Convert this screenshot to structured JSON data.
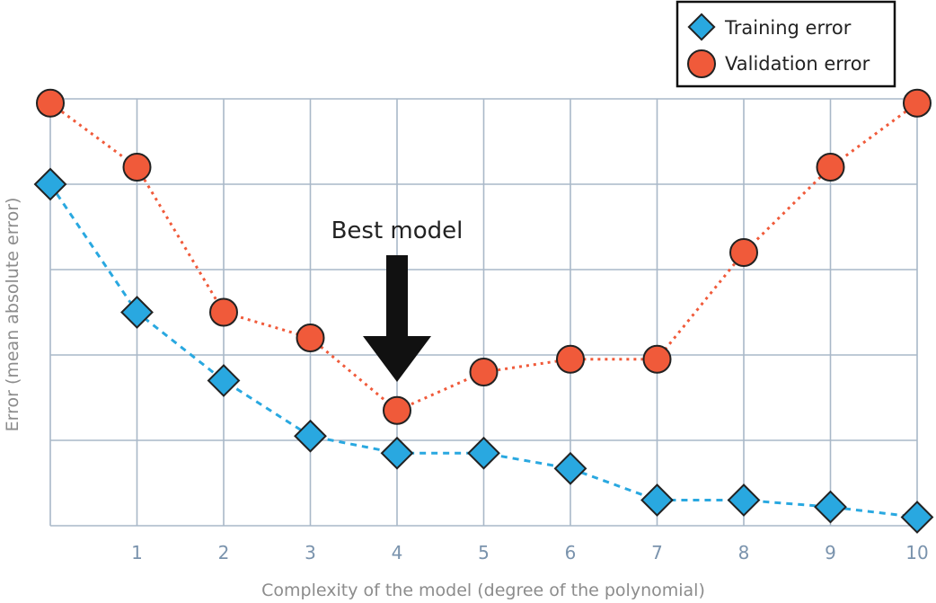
{
  "chart_data": {
    "type": "line",
    "title": "",
    "xlabel": "Complexity of the model (degree of the polynomial)",
    "ylabel": "Error (mean absolute error)",
    "x": [
      0,
      1,
      2,
      3,
      4,
      5,
      6,
      7,
      8,
      9,
      10
    ],
    "x_tick_labels": [
      "1",
      "2",
      "3",
      "4",
      "5",
      "6",
      "7",
      "8",
      "9",
      "10"
    ],
    "xlim": [
      0,
      10
    ],
    "ylim": [
      0,
      5
    ],
    "y_ticks_shown": false,
    "grid": true,
    "legend_position": "top-right",
    "series": [
      {
        "name": "Training error",
        "marker": "diamond",
        "line_style": "dashed",
        "color": "#29a8e0",
        "values": [
          4.0,
          2.5,
          1.7,
          1.05,
          0.85,
          0.85,
          0.67,
          0.3,
          0.3,
          0.22,
          0.1
        ]
      },
      {
        "name": "Validation error",
        "marker": "circle",
        "line_style": "dotted",
        "color": "#f05a3a",
        "values": [
          4.95,
          4.2,
          2.5,
          2.2,
          1.35,
          1.8,
          1.95,
          1.95,
          3.2,
          4.2,
          4.95
        ]
      }
    ],
    "annotations": [
      {
        "text": "Best model",
        "x": 4,
        "arrow": "down"
      }
    ]
  }
}
